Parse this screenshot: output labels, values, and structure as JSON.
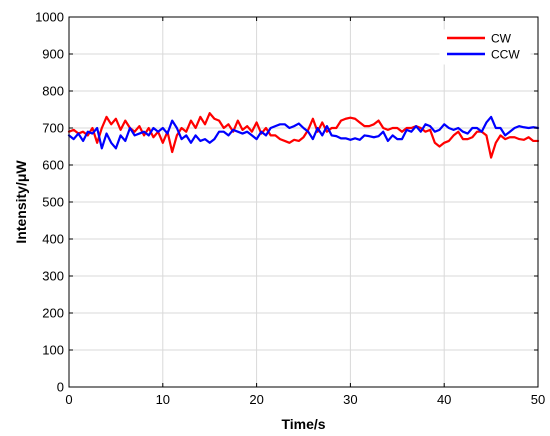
{
  "chart_data": {
    "type": "line",
    "xlabel": "Time/s",
    "ylabel": "Intensity/μW",
    "xlim": [
      0,
      50
    ],
    "ylim": [
      0,
      1000
    ],
    "xticks": [
      0,
      10,
      20,
      30,
      40,
      50
    ],
    "yticks": [
      0,
      100,
      200,
      300,
      400,
      500,
      600,
      700,
      800,
      900,
      1000
    ],
    "grid": true,
    "legend_position": "top-right",
    "x": [
      0,
      0.5,
      1,
      1.5,
      2,
      2.5,
      3,
      3.5,
      4,
      4.5,
      5,
      5.5,
      6,
      6.5,
      7,
      7.5,
      8,
      8.5,
      9,
      9.5,
      10,
      10.5,
      11,
      11.5,
      12,
      12.5,
      13,
      13.5,
      14,
      14.5,
      15,
      15.5,
      16,
      16.5,
      17,
      17.5,
      18,
      18.5,
      19,
      19.5,
      20,
      20.5,
      21,
      21.5,
      22,
      22.5,
      23,
      23.5,
      24,
      24.5,
      25,
      25.5,
      26,
      26.5,
      27,
      27.5,
      28,
      28.5,
      29,
      29.5,
      30,
      30.5,
      31,
      31.5,
      32,
      32.5,
      33,
      33.5,
      34,
      34.5,
      35,
      35.5,
      36,
      36.5,
      37,
      37.5,
      38,
      38.5,
      39,
      39.5,
      40,
      40.5,
      41,
      41.5,
      42,
      42.5,
      43,
      43.5,
      44,
      44.5,
      45,
      45.5,
      46,
      46.5,
      47,
      47.5,
      48,
      48.5,
      49,
      49.5,
      50
    ],
    "series": [
      {
        "name": "CW",
        "color": "#ff0000",
        "values": [
          690,
          695,
          685,
          690,
          680,
          700,
          660,
          700,
          730,
          710,
          725,
          695,
          720,
          700,
          690,
          705,
          680,
          700,
          675,
          690,
          660,
          690,
          635,
          680,
          700,
          690,
          720,
          700,
          730,
          710,
          740,
          725,
          720,
          700,
          710,
          690,
          720,
          695,
          705,
          690,
          715,
          685,
          700,
          680,
          680,
          670,
          665,
          660,
          668,
          665,
          675,
          695,
          725,
          690,
          715,
          690,
          700,
          700,
          720,
          725,
          728,
          725,
          715,
          705,
          705,
          710,
          720,
          700,
          695,
          700,
          700,
          690,
          700,
          700,
          705,
          700,
          690,
          695,
          660,
          650,
          660,
          665,
          680,
          690,
          670,
          670,
          675,
          690,
          690,
          680,
          620,
          660,
          680,
          670,
          675,
          675,
          670,
          668,
          675,
          665,
          665
        ]
      },
      {
        "name": "CCW",
        "color": "#0000ff",
        "values": [
          680,
          670,
          685,
          665,
          690,
          685,
          700,
          645,
          685,
          660,
          645,
          680,
          665,
          700,
          680,
          685,
          690,
          680,
          700,
          690,
          700,
          685,
          720,
          700,
          670,
          680,
          660,
          680,
          665,
          670,
          660,
          670,
          690,
          690,
          680,
          695,
          690,
          685,
          690,
          680,
          670,
          690,
          680,
          700,
          705,
          710,
          710,
          700,
          705,
          712,
          700,
          690,
          670,
          700,
          680,
          705,
          680,
          678,
          672,
          672,
          668,
          672,
          668,
          680,
          678,
          675,
          678,
          690,
          665,
          680,
          670,
          670,
          695,
          690,
          705,
          690,
          710,
          705,
          690,
          695,
          710,
          700,
          695,
          700,
          690,
          685,
          700,
          700,
          690,
          715,
          730,
          700,
          700,
          680,
          690,
          700,
          705,
          702,
          700,
          702,
          700
        ]
      }
    ]
  }
}
